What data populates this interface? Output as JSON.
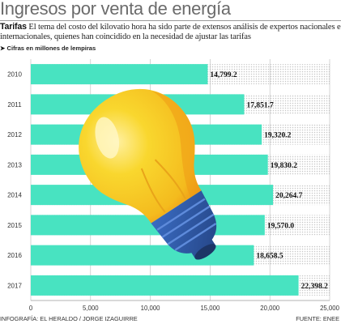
{
  "header": {
    "title": "Ingresos por venta de energía",
    "lead": "Tarifas",
    "description": "El tema del costo del kilovatio hora ha sido parte de extensos análisis de expertos nacionales e internacionales, quienes han coincidido en la necesidad de ajustar las tarifas",
    "note": "Cifras en millones de lempiras"
  },
  "footer": {
    "credit": "INFOGRAFÍA: EL HERALDO / JORGE IZAGUIRRE",
    "source": "FUENTE: ENEE"
  },
  "colors": {
    "bar": "#48e3c1",
    "bulb": "#f7cf24",
    "bulb_shadow": "#f0a81a",
    "socket": "#2d57a3",
    "grid_dots": "#c9c9c9"
  },
  "chart_data": {
    "type": "bar",
    "orientation": "horizontal",
    "categories": [
      "2010",
      "2011",
      "2012",
      "2013",
      "2014",
      "2015",
      "2016",
      "2017"
    ],
    "values": [
      14799.2,
      17851.7,
      19320.2,
      19830.2,
      20264.7,
      19570.0,
      18658.5,
      22398.2
    ],
    "value_labels": [
      "14,799.2",
      "17,851.7",
      "19,320.2",
      "19,830.2",
      "20,264.7",
      "19,570.0",
      "18,658.5",
      "22,398.2"
    ],
    "x_ticks": [
      0,
      5000,
      10000,
      15000,
      20000,
      25000
    ],
    "x_tick_labels": [
      "0",
      "5,000",
      "10,000",
      "15,000",
      "20,000",
      "25,000"
    ],
    "xlim": [
      0,
      25000
    ],
    "grid": true,
    "legend": "none"
  }
}
